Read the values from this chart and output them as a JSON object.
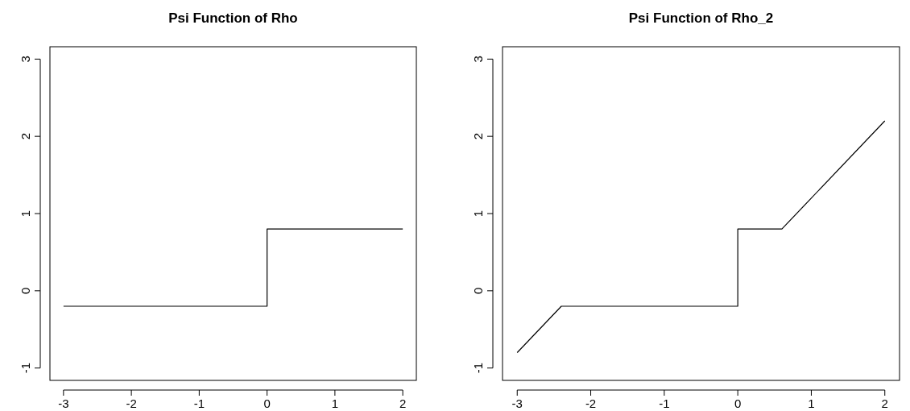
{
  "chart_data": [
    {
      "type": "line",
      "title": "Psi Function of Rho",
      "x": [
        -3,
        0,
        0,
        2
      ],
      "values": [
        -0.2,
        -0.2,
        0.8,
        0.8
      ],
      "color": "#000000",
      "xlim": [
        -3.2,
        2.2
      ],
      "xticks": [
        -3,
        -2,
        -1,
        0,
        1,
        2
      ],
      "ylim": [
        -1.16,
        3.16
      ],
      "yticks": [
        -1,
        0,
        1,
        2,
        3
      ]
    },
    {
      "type": "line",
      "title": "Psi Function of Rho_2",
      "x": [
        -3,
        -2.4,
        0,
        0,
        0.6,
        2
      ],
      "values": [
        -0.8,
        -0.2,
        -0.2,
        0.8,
        0.8,
        2.2
      ],
      "color": "#000000",
      "xlim": [
        -3.2,
        2.2
      ],
      "xticks": [
        -3,
        -2,
        -1,
        0,
        1,
        2
      ],
      "ylim": [
        -1.16,
        3.16
      ],
      "yticks": [
        -1,
        0,
        1,
        2,
        3
      ]
    }
  ]
}
